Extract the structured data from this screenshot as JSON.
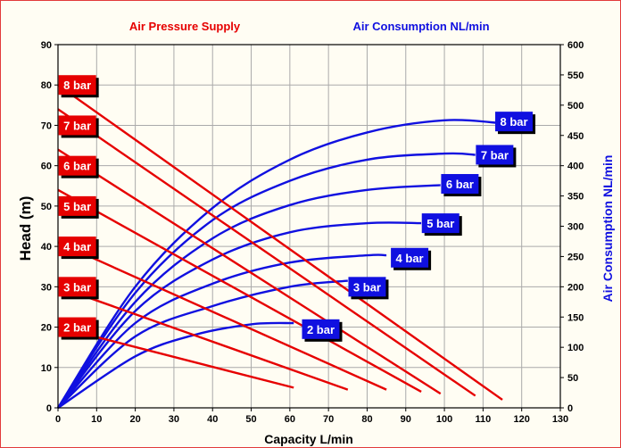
{
  "colors": {
    "pressure": "#e60000",
    "consumption": "#1010e0",
    "grid": "#aaaaaa",
    "background": "#fffdf3"
  },
  "chart_data": {
    "type": "line",
    "title_left": "Air Pressure Supply",
    "title_right": "Air Consumption NL/min",
    "xlabel": "Capacity L/min",
    "ylabel": "Head (m)",
    "y2label": "Air Consumption NL/min",
    "xlim": [
      0,
      130
    ],
    "ylim": [
      0,
      90
    ],
    "y2lim": [
      0,
      600
    ],
    "x_ticks": [
      0,
      10,
      20,
      30,
      40,
      50,
      60,
      70,
      80,
      90,
      100,
      110,
      120,
      130
    ],
    "y_ticks": [
      0,
      10,
      20,
      30,
      40,
      50,
      60,
      70,
      80,
      90
    ],
    "y2_ticks": [
      0,
      50,
      100,
      150,
      200,
      250,
      300,
      350,
      400,
      450,
      500,
      550,
      600
    ],
    "grid": true,
    "head_series": [
      {
        "name": "8 bar",
        "points": [
          [
            0,
            80
          ],
          [
            115,
            2
          ]
        ]
      },
      {
        "name": "7 bar",
        "points": [
          [
            0,
            74
          ],
          [
            108,
            3
          ]
        ]
      },
      {
        "name": "6 bar",
        "points": [
          [
            0,
            64
          ],
          [
            99,
            3.5
          ]
        ]
      },
      {
        "name": "5 bar",
        "points": [
          [
            0,
            54
          ],
          [
            94,
            4
          ]
        ]
      },
      {
        "name": "4 bar",
        "points": [
          [
            0,
            41
          ],
          [
            85,
            4.5
          ]
        ]
      },
      {
        "name": "3 bar",
        "points": [
          [
            0,
            30
          ],
          [
            75,
            4.5
          ]
        ]
      },
      {
        "name": "2 bar",
        "points": [
          [
            0,
            20
          ],
          [
            61,
            5
          ]
        ]
      }
    ],
    "air_series": [
      {
        "name": "8 bar",
        "points": [
          [
            0,
            0
          ],
          [
            20,
            200
          ],
          [
            40,
            330
          ],
          [
            60,
            410
          ],
          [
            80,
            455
          ],
          [
            100,
            475
          ],
          [
            115,
            470
          ]
        ]
      },
      {
        "name": "7 bar",
        "points": [
          [
            0,
            0
          ],
          [
            20,
            190
          ],
          [
            40,
            310
          ],
          [
            60,
            375
          ],
          [
            80,
            410
          ],
          [
            100,
            420
          ],
          [
            108,
            418
          ]
        ]
      },
      {
        "name": "6 bar",
        "points": [
          [
            0,
            0
          ],
          [
            20,
            175
          ],
          [
            40,
            280
          ],
          [
            60,
            335
          ],
          [
            80,
            360
          ],
          [
            99,
            368
          ]
        ]
      },
      {
        "name": "5 bar",
        "points": [
          [
            0,
            0
          ],
          [
            20,
            160
          ],
          [
            40,
            245
          ],
          [
            60,
            290
          ],
          [
            80,
            305
          ],
          [
            94,
            305
          ]
        ]
      },
      {
        "name": "4 bar",
        "points": [
          [
            0,
            0
          ],
          [
            20,
            140
          ],
          [
            40,
            205
          ],
          [
            60,
            240
          ],
          [
            80,
            252
          ],
          [
            85,
            252
          ]
        ]
      },
      {
        "name": "3 bar",
        "points": [
          [
            0,
            0
          ],
          [
            20,
            118
          ],
          [
            40,
            168
          ],
          [
            60,
            200
          ],
          [
            75,
            210
          ]
        ]
      },
      {
        "name": "2 bar",
        "points": [
          [
            0,
            0
          ],
          [
            20,
            85
          ],
          [
            35,
            120
          ],
          [
            50,
            138
          ],
          [
            61,
            140
          ]
        ]
      }
    ],
    "pressure_labels": [
      {
        "text": "8 bar",
        "head": 80
      },
      {
        "text": "7 bar",
        "head": 70
      },
      {
        "text": "6 bar",
        "head": 60
      },
      {
        "text": "5 bar",
        "head": 50
      },
      {
        "text": "4 bar",
        "head": 40
      },
      {
        "text": "3 bar",
        "head": 30
      },
      {
        "text": "2 bar",
        "head": 20
      }
    ],
    "air_labels": [
      {
        "text": "8 bar",
        "capacity": 118,
        "air": 473
      },
      {
        "text": "7 bar",
        "capacity": 113,
        "air": 418
      },
      {
        "text": "6 bar",
        "capacity": 104,
        "air": 370
      },
      {
        "text": "5 bar",
        "capacity": 99,
        "air": 305
      },
      {
        "text": "4 bar",
        "capacity": 91,
        "air": 248
      },
      {
        "text": "3 bar",
        "capacity": 80,
        "air": 200
      },
      {
        "text": "2 bar",
        "capacity": 68,
        "air": 130
      }
    ]
  }
}
